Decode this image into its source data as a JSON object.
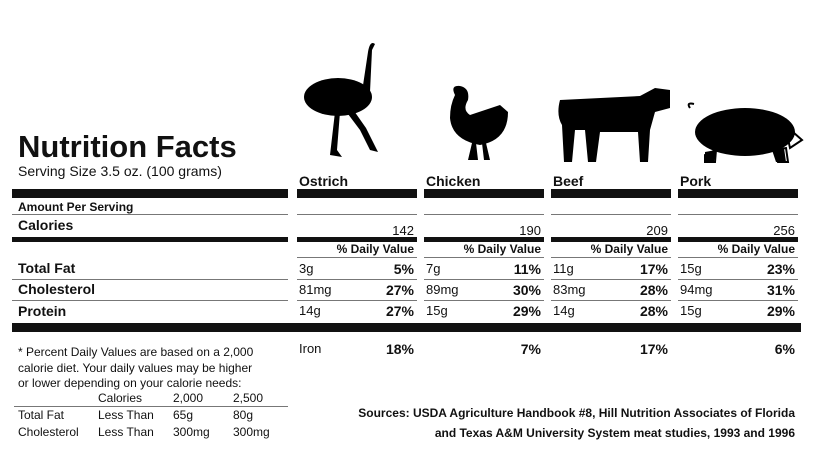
{
  "title": "Nutrition Facts",
  "serving_size": "Serving Size 3.5 oz. (100 grams)",
  "amount_per_serving": "Amount Per Serving",
  "row_labels": {
    "calories": "Calories",
    "total_fat": "Total Fat",
    "cholesterol": "Cholesterol",
    "protein": "Protein"
  },
  "daily_value_header": "% Daily Value",
  "iron_label": "Iron",
  "animals": [
    {
      "name": "Ostrich",
      "calories": "142",
      "total_fat": "3g",
      "total_fat_dv": "5%",
      "cholesterol": "81mg",
      "cholesterol_dv": "27%",
      "protein": "14g",
      "protein_dv": "27%",
      "iron_dv": "18%"
    },
    {
      "name": "Chicken",
      "calories": "190",
      "total_fat": "7g",
      "total_fat_dv": "11%",
      "cholesterol": "89mg",
      "cholesterol_dv": "30%",
      "protein": "15g",
      "protein_dv": "29%",
      "iron_dv": "7%"
    },
    {
      "name": "Beef",
      "calories": "209",
      "total_fat": "11g",
      "total_fat_dv": "17%",
      "cholesterol": "83mg",
      "cholesterol_dv": "28%",
      "protein": "14g",
      "protein_dv": "28%",
      "iron_dv": "17%"
    },
    {
      "name": "Pork",
      "calories": "256",
      "total_fat": "15g",
      "total_fat_dv": "23%",
      "cholesterol": "94mg",
      "cholesterol_dv": "31%",
      "protein": "15g",
      "protein_dv": "29%",
      "iron_dv": "6%"
    }
  ],
  "footnote": [
    "* Percent Daily Values are based on a 2,000",
    "calorie diet. Your daily values may be higher",
    "or lower depending on your calorie needs:"
  ],
  "calorie_table": {
    "header": [
      "Calories",
      "2,000",
      "2,500"
    ],
    "rows": [
      [
        "Total Fat",
        "Less Than",
        "65g",
        "80g"
      ],
      [
        "Cholesterol",
        "Less Than",
        "300mg",
        "300mg"
      ]
    ]
  },
  "sources": [
    "Sources: USDA Agriculture Handbook #8, Hill Nutrition Associates of Florida",
    "and Texas A&M University System meat studies, 1993 and 1996"
  ]
}
